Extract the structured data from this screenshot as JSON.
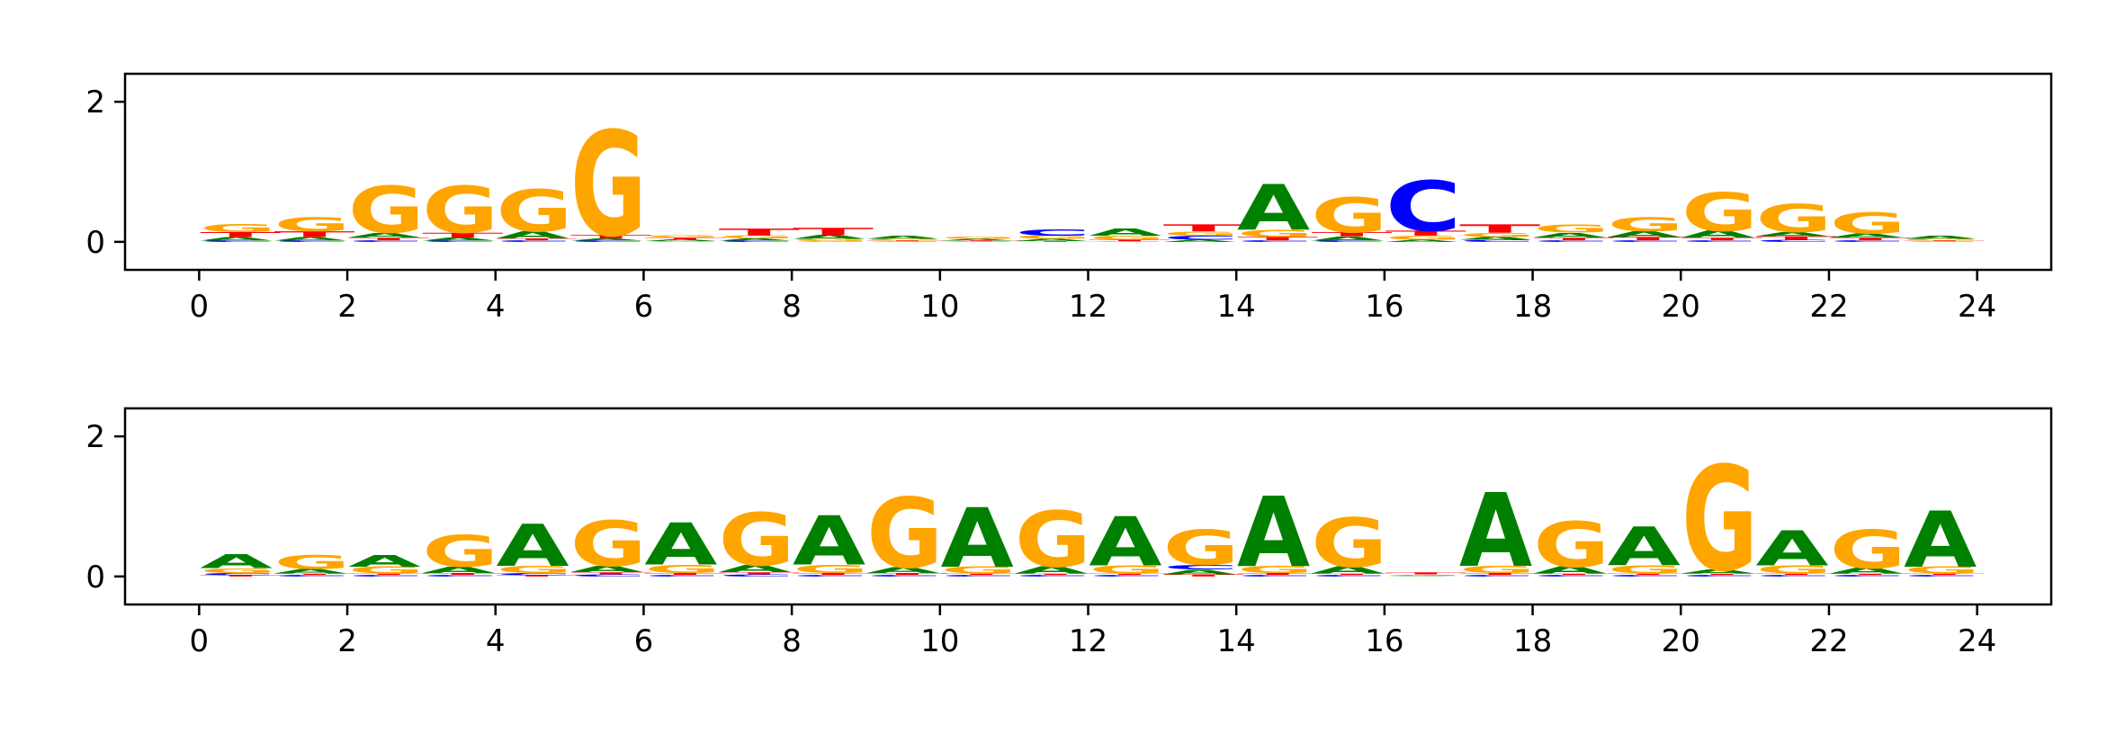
{
  "colors": {
    "A": "#008000",
    "C": "#0000ff",
    "G": "#ffa500",
    "T": "#ff0000"
  },
  "chart_data": [
    {
      "type": "sequence-logo",
      "title": "",
      "xlabel": "",
      "ylabel": "",
      "xlim": [
        -1,
        25
      ],
      "ylim": [
        -0.4,
        2.4
      ],
      "xticks": [
        "0",
        "2",
        "4",
        "6",
        "8",
        "10",
        "12",
        "14",
        "16",
        "18",
        "20",
        "22",
        "24"
      ],
      "yticks": [
        "0",
        "2"
      ],
      "positions": [
        {
          "pos": 0,
          "letters": {
            "A": 0.05,
            "C": 0.02,
            "T": 0.07,
            "G": 0.12
          }
        },
        {
          "pos": 1,
          "letters": {
            "A": 0.05,
            "C": 0.02,
            "T": 0.08,
            "G": 0.2
          }
        },
        {
          "pos": 2,
          "letters": {
            "C": 0.02,
            "T": 0.04,
            "A": 0.07,
            "G": 0.67
          }
        },
        {
          "pos": 3,
          "letters": {
            "C": 0.02,
            "A": 0.04,
            "T": 0.07,
            "G": 0.67
          }
        },
        {
          "pos": 4,
          "letters": {
            "C": 0.02,
            "T": 0.03,
            "A": 0.1,
            "G": 0.6
          }
        },
        {
          "pos": 5,
          "letters": {
            "C": 0.02,
            "A": 0.03,
            "T": 0.05,
            "G": 1.5
          }
        },
        {
          "pos": 6,
          "letters": {
            "A": 0.02,
            "C": 0.01,
            "T": 0.03,
            "G": 0.03
          }
        },
        {
          "pos": 7,
          "letters": {
            "C": 0.02,
            "G": 0.04,
            "A": 0.03,
            "T": 0.1
          }
        },
        {
          "pos": 8,
          "letters": {
            "C": 0.01,
            "G": 0.03,
            "A": 0.06,
            "T": 0.1
          }
        },
        {
          "pos": 9,
          "letters": {
            "C": 0.01,
            "T": 0.01,
            "A": 0.04,
            "G": 0.02
          }
        },
        {
          "pos": 10,
          "letters": {
            "C": 0.01,
            "T": 0.01,
            "A": 0.02,
            "G": 0.03
          }
        },
        {
          "pos": 11,
          "letters": {
            "T": 0.01,
            "A": 0.03,
            "G": 0.05,
            "C": 0.09
          }
        },
        {
          "pos": 12,
          "letters": {
            "C": 0.01,
            "T": 0.02,
            "G": 0.06,
            "A": 0.1
          }
        },
        {
          "pos": 13,
          "letters": {
            "A": 0.03,
            "C": 0.06,
            "G": 0.06,
            "T": 0.1
          }
        },
        {
          "pos": 14,
          "letters": {
            "C": 0.02,
            "T": 0.05,
            "G": 0.1,
            "A": 0.65
          }
        },
        {
          "pos": 15,
          "letters": {
            "C": 0.02,
            "A": 0.06,
            "T": 0.06,
            "G": 0.5
          }
        },
        {
          "pos": 16,
          "letters": {
            "A": 0.03,
            "G": 0.06,
            "T": 0.07,
            "C": 0.72
          }
        },
        {
          "pos": 17,
          "letters": {
            "A": 0.04,
            "C": 0.03,
            "G": 0.06,
            "T": 0.12
          }
        },
        {
          "pos": 18,
          "letters": {
            "C": 0.02,
            "T": 0.04,
            "A": 0.07,
            "G": 0.12
          }
        },
        {
          "pos": 19,
          "letters": {
            "C": 0.02,
            "T": 0.05,
            "A": 0.08,
            "G": 0.2
          }
        },
        {
          "pos": 20,
          "letters": {
            "C": 0.02,
            "T": 0.04,
            "A": 0.1,
            "G": 0.55
          }
        },
        {
          "pos": 21,
          "letters": {
            "C": 0.03,
            "T": 0.05,
            "A": 0.06,
            "G": 0.4
          }
        },
        {
          "pos": 22,
          "letters": {
            "C": 0.02,
            "T": 0.04,
            "A": 0.06,
            "G": 0.3
          }
        },
        {
          "pos": 23,
          "letters": {
            "C": 0.01,
            "T": 0.01,
            "G": 0.02,
            "A": 0.04
          }
        }
      ]
    },
    {
      "type": "sequence-logo",
      "title": "",
      "xlabel": "",
      "ylabel": "",
      "xlim": [
        -1,
        25
      ],
      "ylim": [
        -0.4,
        2.4
      ],
      "xticks": [
        "0",
        "2",
        "4",
        "6",
        "8",
        "10",
        "12",
        "14",
        "16",
        "18",
        "20",
        "22",
        "24"
      ],
      "yticks": [
        "0",
        "2"
      ],
      "positions": [
        {
          "pos": 0,
          "letters": {
            "C": 0.03,
            "T": 0.02,
            "G": 0.07,
            "A": 0.2
          }
        },
        {
          "pos": 1,
          "letters": {
            "C": 0.02,
            "T": 0.02,
            "A": 0.07,
            "G": 0.2
          }
        },
        {
          "pos": 2,
          "letters": {
            "C": 0.02,
            "T": 0.02,
            "G": 0.1,
            "A": 0.17
          }
        },
        {
          "pos": 3,
          "letters": {
            "C": 0.02,
            "T": 0.03,
            "A": 0.09,
            "G": 0.45
          }
        },
        {
          "pos": 4,
          "letters": {
            "C": 0.03,
            "T": 0.02,
            "G": 0.1,
            "A": 0.6
          }
        },
        {
          "pos": 5,
          "letters": {
            "C": 0.03,
            "T": 0.03,
            "A": 0.09,
            "G": 0.65
          }
        },
        {
          "pos": 6,
          "letters": {
            "C": 0.02,
            "T": 0.03,
            "G": 0.12,
            "A": 0.6
          }
        },
        {
          "pos": 7,
          "letters": {
            "C": 0.03,
            "T": 0.03,
            "A": 0.1,
            "G": 0.75
          }
        },
        {
          "pos": 8,
          "letters": {
            "C": 0.02,
            "T": 0.03,
            "G": 0.12,
            "A": 0.7
          }
        },
        {
          "pos": 9,
          "letters": {
            "C": 0.02,
            "T": 0.03,
            "A": 0.08,
            "G": 1.0
          }
        },
        {
          "pos": 10,
          "letters": {
            "C": 0.02,
            "T": 0.02,
            "G": 0.1,
            "A": 0.85
          }
        },
        {
          "pos": 11,
          "letters": {
            "C": 0.02,
            "T": 0.02,
            "A": 0.1,
            "G": 0.8
          }
        },
        {
          "pos": 12,
          "letters": {
            "C": 0.02,
            "T": 0.02,
            "G": 0.12,
            "A": 0.7
          }
        },
        {
          "pos": 13,
          "letters": {
            "T": 0.03,
            "A": 0.07,
            "C": 0.07,
            "G": 0.5
          }
        },
        {
          "pos": 14,
          "letters": {
            "C": 0.02,
            "T": 0.03,
            "G": 0.1,
            "A": 1.0
          }
        },
        {
          "pos": 15,
          "letters": {
            "C": 0.02,
            "T": 0.02,
            "A": 0.1,
            "G": 0.7
          }
        },
        {
          "pos": 16,
          "letters": {
            "A": 0.01,
            "C": 0.01,
            "G": 0.01,
            "T": 0.03
          }
        },
        {
          "pos": 17,
          "letters": {
            "C": 0.02,
            "T": 0.03,
            "G": 0.1,
            "A": 1.05
          }
        },
        {
          "pos": 18,
          "letters": {
            "C": 0.02,
            "T": 0.02,
            "A": 0.1,
            "G": 0.65
          }
        },
        {
          "pos": 19,
          "letters": {
            "C": 0.02,
            "T": 0.02,
            "G": 0.12,
            "A": 0.55
          }
        },
        {
          "pos": 20,
          "letters": {
            "C": 0.02,
            "T": 0.02,
            "A": 0.06,
            "G": 1.5
          }
        },
        {
          "pos": 21,
          "letters": {
            "C": 0.02,
            "T": 0.02,
            "G": 0.12,
            "A": 0.5
          }
        },
        {
          "pos": 22,
          "letters": {
            "C": 0.02,
            "T": 0.02,
            "A": 0.08,
            "G": 0.55
          }
        },
        {
          "pos": 23,
          "letters": {
            "C": 0.02,
            "T": 0.02,
            "G": 0.1,
            "A": 0.8
          }
        }
      ]
    }
  ]
}
